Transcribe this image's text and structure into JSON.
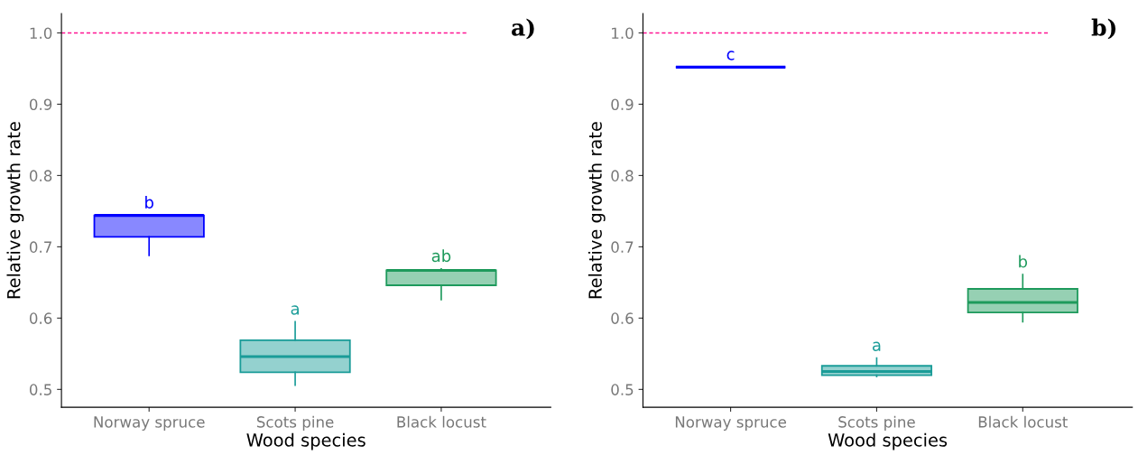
{
  "chart_data": [
    {
      "type": "box",
      "xlabel": "Wood species",
      "ylabel": "Relative growth rate",
      "categories": [
        "Norway spruce",
        "Scots pine",
        "Black locust"
      ],
      "colors": [
        "#0000ff",
        "#1a9c98",
        "#1e9a5c"
      ],
      "boxes": [
        {
          "low": 0.688,
          "q1": 0.714,
          "median": 0.744,
          "q3": 0.744,
          "high": 0.744
        },
        {
          "low": 0.506,
          "q1": 0.524,
          "median": 0.546,
          "q3": 0.569,
          "high": 0.595
        },
        {
          "low": 0.626,
          "q1": 0.646,
          "median": 0.667,
          "q3": 0.667,
          "high": 0.669
        }
      ],
      "ylim": [
        0.475,
        1.027
      ],
      "yticks": [
        0.5,
        0.6,
        0.7,
        0.8,
        0.9,
        {
          "value": 1,
          "label": "1.0"
        }
      ],
      "ref_lines": [
        {
          "axis": "y",
          "value": 1.0,
          "color": "#ff1493",
          "line_style": "dashed"
        }
      ],
      "annotations": [
        "b",
        "a",
        "ab",
        "a)"
      ]
    },
    {
      "type": "box",
      "xlabel": "Wood species",
      "ylabel": "Relative growth rate",
      "categories": [
        "Norway spruce",
        "Scots pine",
        "Black locust"
      ],
      "colors": [
        "#0000ff",
        "#1a9c98",
        "#1e9a5c"
      ],
      "boxes": [
        {
          "low": 0.952,
          "q1": 0.952,
          "median": 0.952,
          "q3": 0.952,
          "high": 0.952
        },
        {
          "low": 0.518,
          "q1": 0.52,
          "median": 0.525,
          "q3": 0.533,
          "high": 0.544
        },
        {
          "low": 0.595,
          "q1": 0.608,
          "median": 0.622,
          "q3": 0.641,
          "high": 0.661
        }
      ],
      "ylim": [
        0.475,
        1.027
      ],
      "yticks": [
        0.5,
        0.6,
        0.7,
        0.8,
        0.9,
        {
          "value": 1,
          "label": "1.0"
        }
      ],
      "ref_lines": [
        {
          "axis": "y",
          "value": 1.0,
          "color": "#ff1493",
          "line_style": "dashed"
        }
      ],
      "annotations": [
        "c",
        "a",
        "b",
        "b)"
      ]
    }
  ]
}
